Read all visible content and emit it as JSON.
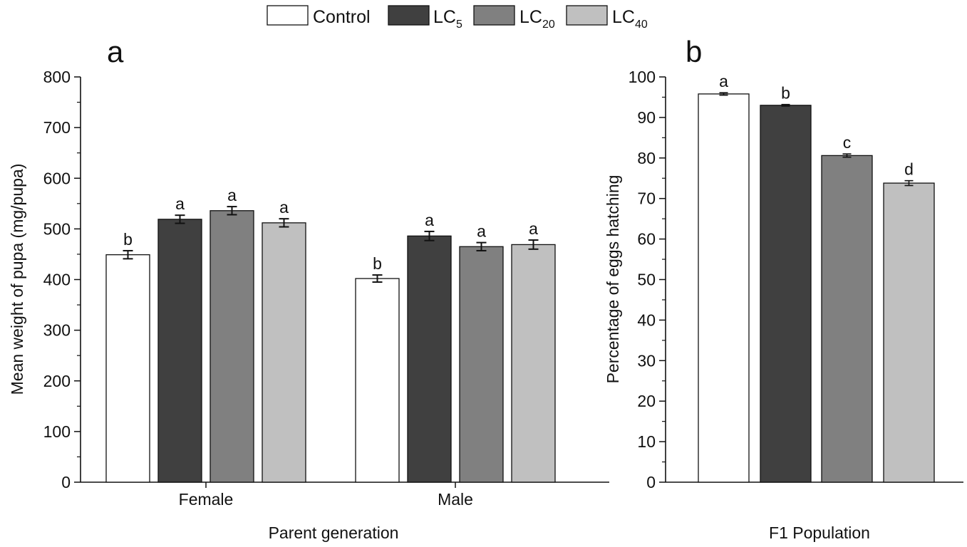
{
  "legend": {
    "items": [
      {
        "label": "Control",
        "sub": "",
        "color": "#ffffff"
      },
      {
        "label": "LC",
        "sub": "5",
        "color": "#404040"
      },
      {
        "label": "LC",
        "sub": "20",
        "color": "#808080"
      },
      {
        "label": "LC",
        "sub": "40",
        "color": "#c0c0c0"
      }
    ]
  },
  "chart_data": [
    {
      "type": "bar",
      "panel_label": "a",
      "xlabel": "Parent generation",
      "ylabel": "Mean weight of pupa (mg/pupa)",
      "ylim": [
        0,
        800
      ],
      "yticks": [
        0,
        100,
        200,
        300,
        400,
        500,
        600,
        700,
        800
      ],
      "categories": [
        "Female",
        "Male"
      ],
      "series": [
        {
          "name": "Control",
          "values": [
            449,
            402
          ],
          "errors": [
            8,
            7
          ],
          "letters": [
            "b",
            "b"
          ],
          "color": "#ffffff"
        },
        {
          "name": "LC5",
          "values": [
            519,
            486
          ],
          "errors": [
            8,
            9
          ],
          "letters": [
            "a",
            "a"
          ],
          "color": "#404040"
        },
        {
          "name": "LC20",
          "values": [
            536,
            465
          ],
          "errors": [
            8,
            8
          ],
          "letters": [
            "a",
            "a"
          ],
          "color": "#808080"
        },
        {
          "name": "LC40",
          "values": [
            512,
            469
          ],
          "errors": [
            8,
            9
          ],
          "letters": [
            "a",
            "a"
          ],
          "color": "#c0c0c0"
        }
      ]
    },
    {
      "type": "bar",
      "panel_label": "b",
      "xlabel": "F1 Population",
      "ylabel": "Percentage of eggs hatching",
      "ylim": [
        0,
        100
      ],
      "yticks": [
        0,
        10,
        20,
        30,
        40,
        50,
        60,
        70,
        80,
        90,
        100
      ],
      "categories": [
        "Control",
        "LC5",
        "LC20",
        "LC40"
      ],
      "series": [
        {
          "name": "Percentage of eggs hatching",
          "values": [
            95.8,
            93.0,
            80.6,
            73.8
          ],
          "errors": [
            0.3,
            0.2,
            0.4,
            0.6
          ],
          "letters": [
            "a",
            "b",
            "c",
            "d"
          ],
          "colors": [
            "#ffffff",
            "#404040",
            "#808080",
            "#c0c0c0"
          ]
        }
      ]
    }
  ]
}
